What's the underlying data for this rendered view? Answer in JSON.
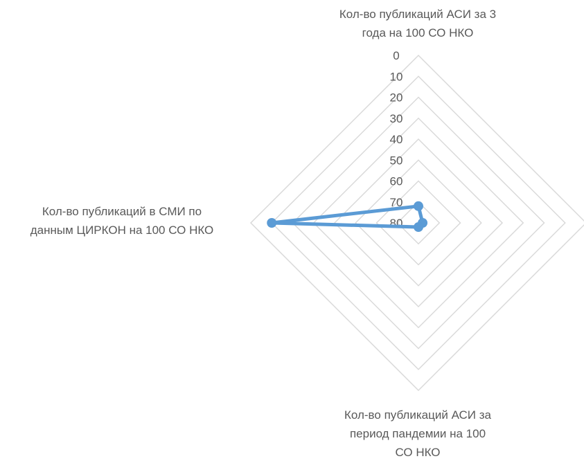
{
  "chart_data": {
    "type": "radar",
    "axis_direction": "reversed",
    "r_range": [
      0,
      80
    ],
    "r_ticks": [
      "0",
      "10",
      "20",
      "30",
      "40",
      "50",
      "60",
      "70",
      "80"
    ],
    "grid": true,
    "categories": [
      [
        "Кол-во публикаций АСИ за 3",
        "года на 100 СО НКО"
      ],
      [
        "",
        ""
      ],
      [
        "Кол-во публикаций АСИ за",
        "период пандемии на 100",
        "СО НКО"
      ],
      [
        "Кол-во публикаций в СМИ по",
        "данным ЦИРКОН на 100 СО НКО"
      ]
    ],
    "series": [
      {
        "values": [
          72,
          78,
          78,
          10
        ],
        "color": "#5B9BD5"
      }
    ]
  }
}
